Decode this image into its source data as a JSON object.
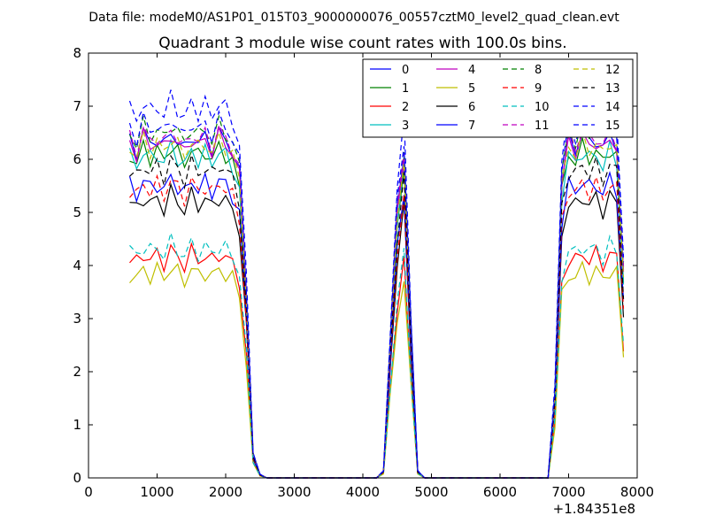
{
  "header": {
    "data_file": "Data file: modeM0/AS1P01_015T03_9000000076_00557cztM0_level2_quad_clean.evt"
  },
  "chart_data": {
    "type": "line",
    "title": "Quadrant 3 module wise count rates with 100.0s bins.",
    "xlabel": "",
    "ylabel": "",
    "offset_text": "+1.84351e8",
    "xlim": [
      0,
      8000
    ],
    "ylim": [
      0,
      8
    ],
    "x_ticks": [
      0,
      1000,
      2000,
      3000,
      4000,
      5000,
      6000,
      7000,
      8000
    ],
    "y_ticks": [
      0,
      1,
      2,
      3,
      4,
      5,
      6,
      7,
      8
    ],
    "grid": false,
    "legend_position": "top-right",
    "series": [
      {
        "name": "0",
        "color": "#0000ff",
        "dash": "solid",
        "level": 6.35
      },
      {
        "name": "1",
        "color": "#008000",
        "dash": "solid",
        "level": 6.1
      },
      {
        "name": "2",
        "color": "#ff0000",
        "dash": "solid",
        "level": 4.15
      },
      {
        "name": "3",
        "color": "#00bfbf",
        "dash": "solid",
        "level": 6.05
      },
      {
        "name": "4",
        "color": "#bf00bf",
        "dash": "solid",
        "level": 6.3
      },
      {
        "name": "5",
        "color": "#bfbf00",
        "dash": "solid",
        "level": 3.85
      },
      {
        "name": "6",
        "color": "#000000",
        "dash": "solid",
        "level": 5.2
      },
      {
        "name": "7",
        "color": "#0000ff",
        "dash": "solid",
        "level": 5.5
      },
      {
        "name": "8",
        "color": "#008000",
        "dash": "dashed",
        "level": 6.5
      },
      {
        "name": "9",
        "color": "#ff0000",
        "dash": "dashed",
        "level": 5.45
      },
      {
        "name": "10",
        "color": "#00bfbf",
        "dash": "dashed",
        "level": 4.3
      },
      {
        "name": "11",
        "color": "#bf00bf",
        "dash": "dashed",
        "level": 6.4
      },
      {
        "name": "12",
        "color": "#bfbf00",
        "dash": "dashed",
        "level": 6.25
      },
      {
        "name": "13",
        "color": "#000000",
        "dash": "dashed",
        "level": 5.8
      },
      {
        "name": "14",
        "color": "#0000ff",
        "dash": "dashed",
        "level": 6.95
      },
      {
        "name": "15",
        "color": "#0000ff",
        "dash": "dashed",
        "level": 6.6
      }
    ],
    "profile_x": [
      600,
      700,
      800,
      900,
      1000,
      1100,
      1200,
      1300,
      1400,
      1500,
      1600,
      1700,
      1800,
      1900,
      2000,
      2100,
      2200,
      2300,
      2400,
      2500,
      2600,
      3000,
      3500,
      4000,
      4200,
      4300,
      4400,
      4500,
      4600,
      4700,
      4800,
      4900,
      5500,
      6000,
      6500,
      6700,
      6800,
      6900,
      7000,
      7100,
      7200,
      7300,
      7400,
      7500,
      7600,
      7700,
      7800
    ],
    "profile_f": [
      1,
      0.97,
      1.02,
      0.99,
      1.01,
      0.98,
      1.03,
      1.0,
      0.97,
      1.02,
      0.99,
      1.01,
      0.98,
      1.02,
      1.0,
      0.97,
      0.9,
      0.55,
      0.07,
      0.01,
      0,
      0,
      0,
      0,
      0,
      0.02,
      0.4,
      0.78,
      0.97,
      0.45,
      0.02,
      0,
      0,
      0,
      0,
      0,
      0.25,
      0.88,
      1.0,
      0.98,
      1.02,
      0.99,
      1.01,
      0.97,
      1.02,
      0.99,
      0.6
    ]
  }
}
